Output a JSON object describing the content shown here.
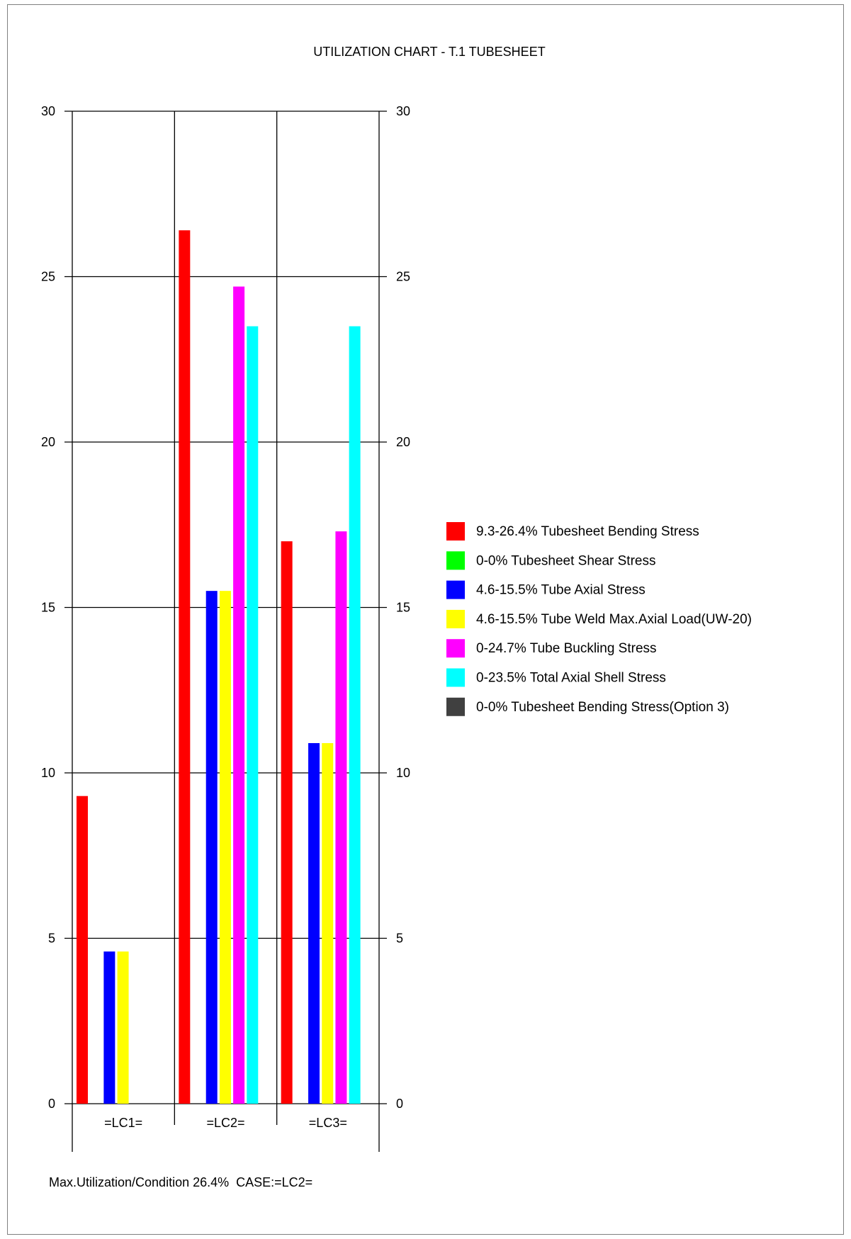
{
  "footer_text": "Max.Utilization/Condition 26.4%  CASE:=LC2=",
  "chart_data": {
    "type": "bar",
    "title": "UTILIZATION CHART - T.1 TUBESHEET",
    "xlabel": "",
    "ylabel": "",
    "ylim": [
      0,
      30
    ],
    "yticks": [
      0,
      5,
      10,
      15,
      20,
      25,
      30
    ],
    "grid": true,
    "legend_position": "right",
    "categories": [
      "=LC1=",
      "=LC2=",
      "=LC3="
    ],
    "series": [
      {
        "name": "9.3-26.4% Tubesheet Bending Stress",
        "color": "#ff0000",
        "values": [
          9.3,
          26.4,
          17.0
        ]
      },
      {
        "name": "0-0% Tubesheet Shear Stress",
        "color": "#00ff00",
        "values": [
          0,
          0,
          0
        ]
      },
      {
        "name": "4.6-15.5% Tube Axial Stress",
        "color": "#0000ff",
        "values": [
          4.6,
          15.5,
          10.9
        ]
      },
      {
        "name": "4.6-15.5% Tube Weld Max.Axial Load(UW-20)",
        "color": "#ffff00",
        "values": [
          4.6,
          15.5,
          10.9
        ]
      },
      {
        "name": "0-24.7% Tube Buckling Stress",
        "color": "#ff00ff",
        "values": [
          0,
          24.7,
          17.3
        ]
      },
      {
        "name": "0-23.5% Total Axial Shell Stress",
        "color": "#00ffff",
        "values": [
          0,
          23.5,
          23.5
        ]
      },
      {
        "name": "0-0% Tubesheet Bending Stress(Option 3)",
        "color": "#404040",
        "values": [
          0,
          0,
          0
        ]
      }
    ]
  }
}
